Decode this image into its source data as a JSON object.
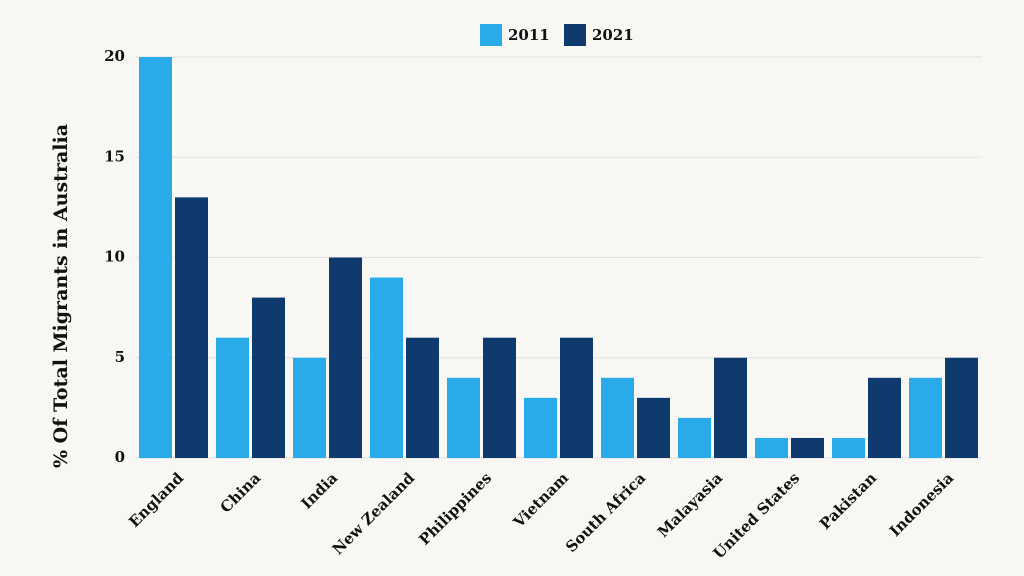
{
  "chart_data": {
    "type": "bar",
    "y_label": "% Of Total Migrants in Australia",
    "categories": [
      "England",
      "China",
      "India",
      "New Zealand",
      "Philippines",
      "Vietnam",
      "South Africa",
      "Malayasia",
      "United States",
      "Pakistan",
      "Indonesia"
    ],
    "series": [
      {
        "name": "2011",
        "color": "#29abe9",
        "values": [
          20,
          6,
          5,
          9,
          4,
          3,
          4,
          2,
          1,
          1,
          4
        ]
      },
      {
        "name": "2021",
        "color": "#0e3a6e",
        "values": [
          13,
          8,
          10,
          6,
          6,
          6,
          3,
          5,
          1,
          4,
          5
        ]
      }
    ],
    "ylim": [
      0,
      20
    ],
    "yticks": [
      0,
      5,
      10,
      15,
      20
    ],
    "grid": true,
    "legend": "top"
  }
}
